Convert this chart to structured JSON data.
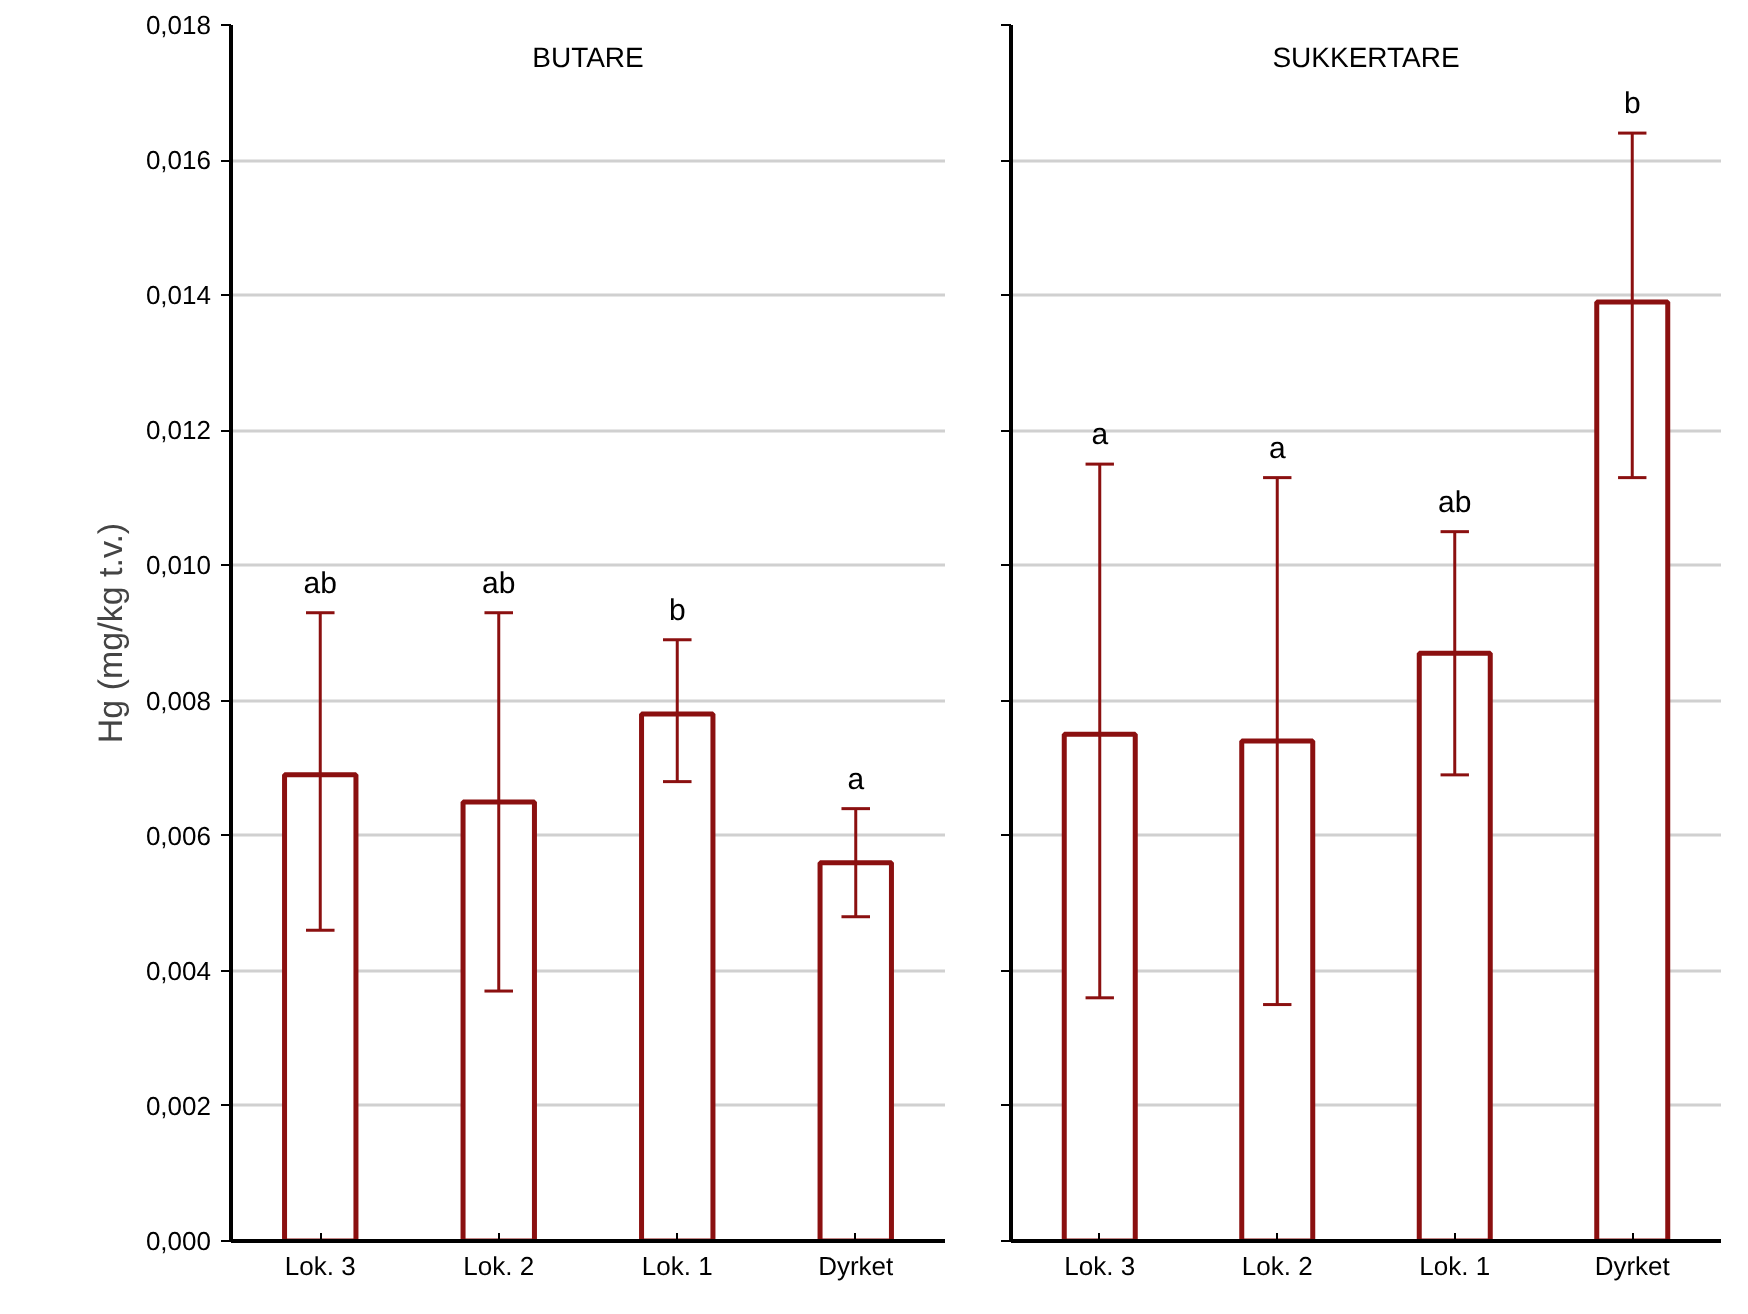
{
  "chart_data": [
    {
      "type": "bar",
      "title": "BUTARE",
      "ylabel": "Hg (mg/kg t.v.)",
      "categories": [
        "Lok. 3",
        "Lok. 2",
        "Lok. 1",
        "Dyrket"
      ],
      "series": [
        {
          "color": "#8b1010",
          "values": [
            0.0069,
            0.0065,
            0.0078,
            0.0056
          ],
          "errors": [
            [
              0.0046,
              0.0093
            ],
            [
              0.0037,
              0.0093
            ],
            [
              0.0068,
              0.0089
            ],
            [
              0.0048,
              0.0064
            ]
          ]
        }
      ],
      "ylim": [
        0,
        0.018
      ],
      "yticks": [
        {
          "value": 0,
          "label": "0,000"
        },
        {
          "value": 0.002,
          "label": "0,002"
        },
        {
          "value": 0.004,
          "label": "0,004"
        },
        {
          "value": 0.006,
          "label": "0,006"
        },
        {
          "value": 0.008,
          "label": "0,008"
        },
        {
          "value": 0.01,
          "label": "0,010"
        },
        {
          "value": 0.012,
          "label": "0,012"
        },
        {
          "value": 0.014,
          "label": "0,014"
        },
        {
          "value": 0.016,
          "label": "0,016"
        },
        {
          "value": 0.018,
          "label": "0,018"
        }
      ],
      "grid": "y",
      "annotations": [
        {
          "text": "ab",
          "x": "Lok. 3",
          "y": 0.0093
        },
        {
          "text": "ab",
          "x": "Lok. 2",
          "y": 0.0093
        },
        {
          "text": "b",
          "x": "Lok. 1",
          "y": 0.0089
        },
        {
          "text": "a",
          "x": "Dyrket",
          "y": 0.0064
        }
      ]
    },
    {
      "type": "bar",
      "title": "SUKKERTARE",
      "categories": [
        "Lok. 3",
        "Lok. 2",
        "Lok. 1",
        "Dyrket"
      ],
      "series": [
        {
          "color": "#8b1010",
          "values": [
            0.0075,
            0.0074,
            0.0087,
            0.0139
          ],
          "errors": [
            [
              0.0036,
              0.0115
            ],
            [
              0.0035,
              0.0113
            ],
            [
              0.0069,
              0.0105
            ],
            [
              0.0113,
              0.0164
            ]
          ]
        }
      ],
      "ylim": [
        0,
        0.018
      ],
      "yticks": [
        0,
        0.002,
        0.004,
        0.006,
        0.008,
        0.01,
        0.012,
        0.014,
        0.016,
        0.018
      ],
      "grid": "y",
      "tick_labels": "x",
      "annotations": [
        {
          "text": "a",
          "x": "Lok. 3",
          "y": 0.0115
        },
        {
          "text": "a",
          "x": "Lok. 2",
          "y": 0.0113
        },
        {
          "text": "ab",
          "x": "Lok. 1",
          "y": 0.0105
        },
        {
          "text": "b",
          "x": "Dyrket",
          "y": 0.0164
        }
      ]
    }
  ]
}
